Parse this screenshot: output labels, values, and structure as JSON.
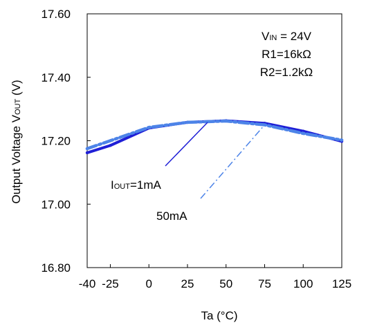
{
  "chart_data": {
    "type": "line",
    "xlabel": "Ta (°C)",
    "ylabel_parts": [
      "Output Voltage V",
      "OUT",
      " (V)"
    ],
    "xlim": [
      -40,
      125
    ],
    "ylim": [
      16.8,
      17.6
    ],
    "x_ticks": [
      -40,
      -25,
      0,
      25,
      50,
      75,
      100,
      125
    ],
    "x_tick_labels": [
      "-40",
      "-25",
      "0",
      "25",
      "50",
      "75",
      "100",
      "125"
    ],
    "y_ticks": [
      16.8,
      17.0,
      17.2,
      17.4,
      17.6
    ],
    "y_tick_labels": [
      "16.80",
      "17.00",
      "17.20",
      "17.40",
      "17.60"
    ],
    "grid": false,
    "conditions": {
      "vin_parts": [
        "V",
        "IN",
        " = 24V"
      ],
      "r1": "R1=16kΩ",
      "r2": "R2=1.2kΩ"
    },
    "series": [
      {
        "name_parts": [
          "I",
          "OUT",
          "=1mA"
        ],
        "color": "#1f1fd6",
        "style": "solid",
        "x": [
          -40,
          -25,
          0,
          25,
          50,
          75,
          100,
          125
        ],
        "y": [
          17.162,
          17.185,
          17.24,
          17.258,
          17.263,
          17.255,
          17.23,
          17.198
        ]
      },
      {
        "name": "50mA",
        "color": "#4d84e8",
        "style": "dashdot",
        "x": [
          -40,
          -25,
          0,
          25,
          50,
          75,
          100,
          125
        ],
        "y": [
          17.175,
          17.2,
          17.242,
          17.258,
          17.262,
          17.25,
          17.223,
          17.202
        ]
      }
    ]
  }
}
